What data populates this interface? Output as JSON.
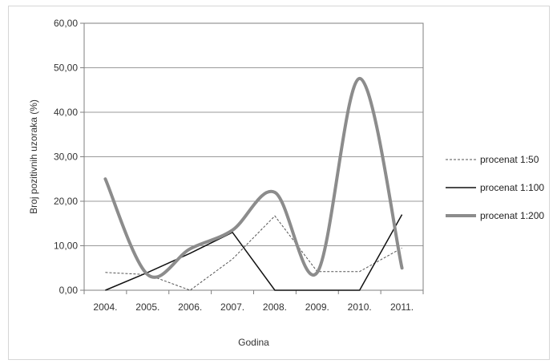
{
  "chart_data": {
    "type": "line",
    "title": "",
    "xlabel": "Godina",
    "ylabel": "Broj pozitivnih uzoraka (%)",
    "categories": [
      "2004.",
      "2005.",
      "2006.",
      "2007.",
      "2008.",
      "2009.",
      "2010.",
      "2011."
    ],
    "ylim": [
      0,
      60
    ],
    "yticks": [
      "0,00",
      "10,00",
      "20,00",
      "30,00",
      "40,00",
      "50,00",
      "60,00"
    ],
    "grid": true,
    "legend_position": "right",
    "series": [
      {
        "name": "procenat 1:50",
        "values": [
          4,
          3.5,
          0,
          7,
          16.7,
          4.2,
          4.2,
          9.5
        ],
        "color": "#555555",
        "style": "dashed",
        "smooth": false
      },
      {
        "name": "procenat 1:100",
        "values": [
          0,
          4,
          8.3,
          13,
          0,
          0,
          0,
          17
        ],
        "color": "#111111",
        "style": "solid",
        "smooth": false
      },
      {
        "name": "procenat 1:200",
        "values": [
          25,
          3.5,
          9.3,
          13.5,
          22,
          4,
          47.6,
          5
        ],
        "color": "#8c8c8c",
        "style": "thick",
        "smooth": true
      }
    ]
  }
}
